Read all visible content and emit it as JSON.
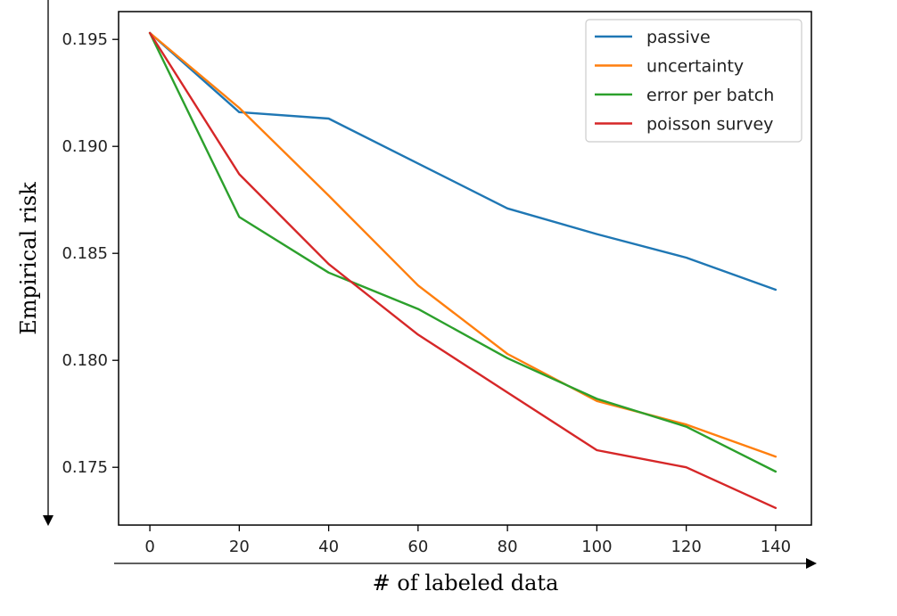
{
  "chart_data": {
    "type": "line",
    "title": "",
    "xlabel": "# of labeled data",
    "ylabel": "Empirical risk",
    "x": [
      0,
      20,
      40,
      60,
      80,
      100,
      120,
      140
    ],
    "xticks": [
      "0",
      "20",
      "40",
      "60",
      "80",
      "100",
      "120",
      "140"
    ],
    "yticks": [
      "0.175",
      "0.180",
      "0.185",
      "0.190",
      "0.195"
    ],
    "ytick_values": [
      0.175,
      0.18,
      0.185,
      0.19,
      0.195
    ],
    "xlim": [
      -7,
      148
    ],
    "ylim": [
      0.1723,
      0.1963
    ],
    "grid": false,
    "legend_position": "top-right",
    "series": [
      {
        "name": "passive",
        "color": "#1f77b4",
        "values": [
          0.1953,
          0.1916,
          0.1913,
          0.1892,
          0.1871,
          0.1859,
          0.1848,
          0.1833
        ]
      },
      {
        "name": "uncertainty",
        "color": "#ff7f0e",
        "values": [
          0.1953,
          0.1918,
          0.1877,
          0.1835,
          0.1803,
          0.1781,
          0.177,
          0.1755
        ]
      },
      {
        "name": "error per batch",
        "color": "#2ca02c",
        "values": [
          0.1953,
          0.1867,
          0.1841,
          0.1824,
          0.1801,
          0.1782,
          0.1769,
          0.1748
        ]
      },
      {
        "name": "poisson survey",
        "color": "#d62728",
        "values": [
          0.1953,
          0.1887,
          0.1845,
          0.1812,
          0.1785,
          0.1758,
          0.175,
          0.1731
        ]
      }
    ]
  }
}
